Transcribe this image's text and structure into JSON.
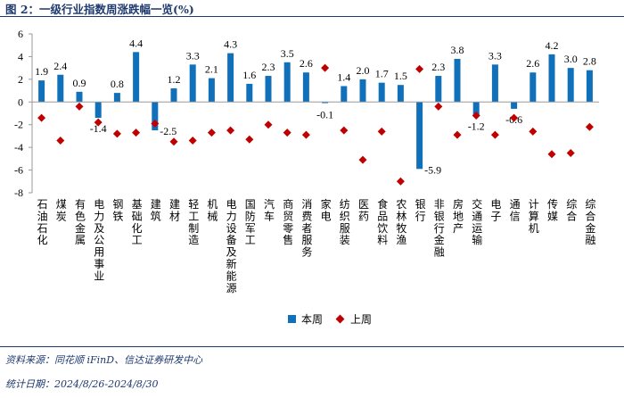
{
  "title": "图 2：一级行业指数周涨跌幅一览(%)",
  "source": "资料来源：同花顺 iFinD、信达证券研发中心",
  "date_range": "统计日期：2024/8/26-2024/8/30",
  "colors": {
    "current": "#1070ba",
    "previous": "#c00000",
    "header": "#1f3a6e"
  },
  "chart_data": {
    "type": "bar",
    "title": "一级行业指数周涨跌幅一览(%)",
    "ylim": [
      -8,
      6
    ],
    "yticks": [
      6,
      4,
      2,
      0,
      -2,
      -4,
      -6,
      -8
    ],
    "ytick_labels": [
      "6",
      "4",
      "2",
      "0",
      "-2",
      "-4",
      "-6",
      "-8"
    ],
    "categories": [
      "石油石化",
      "煤炭",
      "有色金属",
      "电力及公用事业",
      "钢铁",
      "基础化工",
      "建筑",
      "建材",
      "轻工制造",
      "机械",
      "电力设备及新能源",
      "国防军工",
      "汽车",
      "商贸零售",
      "消费者服务",
      "家电",
      "纺织服装",
      "医药",
      "食品饮料",
      "农林牧渔",
      "银行",
      "非银行金融",
      "房地产",
      "交通运输",
      "电子",
      "通信",
      "计算机",
      "传媒",
      "综合",
      "综合金融"
    ],
    "series": [
      {
        "name": "本周",
        "type": "bar",
        "values": [
          1.9,
          2.4,
          0.9,
          -1.4,
          0.8,
          4.4,
          -2.5,
          1.2,
          3.3,
          2.1,
          4.3,
          1.6,
          2.3,
          3.5,
          2.6,
          -0.1,
          1.4,
          2.0,
          1.7,
          1.5,
          -5.9,
          2.3,
          3.8,
          -1.2,
          3.3,
          -0.6,
          2.6,
          4.2,
          3.0,
          2.8
        ],
        "labels": [
          "1.9",
          "2.4",
          "0.9",
          "-1.4",
          "0.8",
          "4.4",
          "-2.5",
          "1.2",
          "3.3",
          "2.1",
          "4.3",
          "1.6",
          "2.3",
          "3.5",
          "2.6",
          "-0.1",
          "1.4",
          "2.0",
          "1.7",
          "1.5",
          "-5.9",
          "2.3",
          "3.8",
          "-1.2",
          "3.3",
          "-0.6",
          "2.6",
          "4.2",
          "3.0",
          "2.8"
        ]
      },
      {
        "name": "上周",
        "type": "scatter",
        "marker": "diamond",
        "values": [
          -1.4,
          -3.4,
          -0.4,
          -1.8,
          -2.8,
          -2.7,
          -1.9,
          -3.5,
          -3.4,
          -2.7,
          -2.5,
          -3.3,
          -2.0,
          -2.7,
          -2.9,
          3.0,
          -2.5,
          -5.1,
          -2.6,
          -7.0,
          2.9,
          -0.4,
          -2.9,
          -1.2,
          -2.9,
          -1.4,
          -2.6,
          -4.6,
          -4.5,
          -2.2
        ]
      }
    ],
    "legend": [
      "本周",
      "上周"
    ],
    "legend_position": "bottom-center"
  }
}
